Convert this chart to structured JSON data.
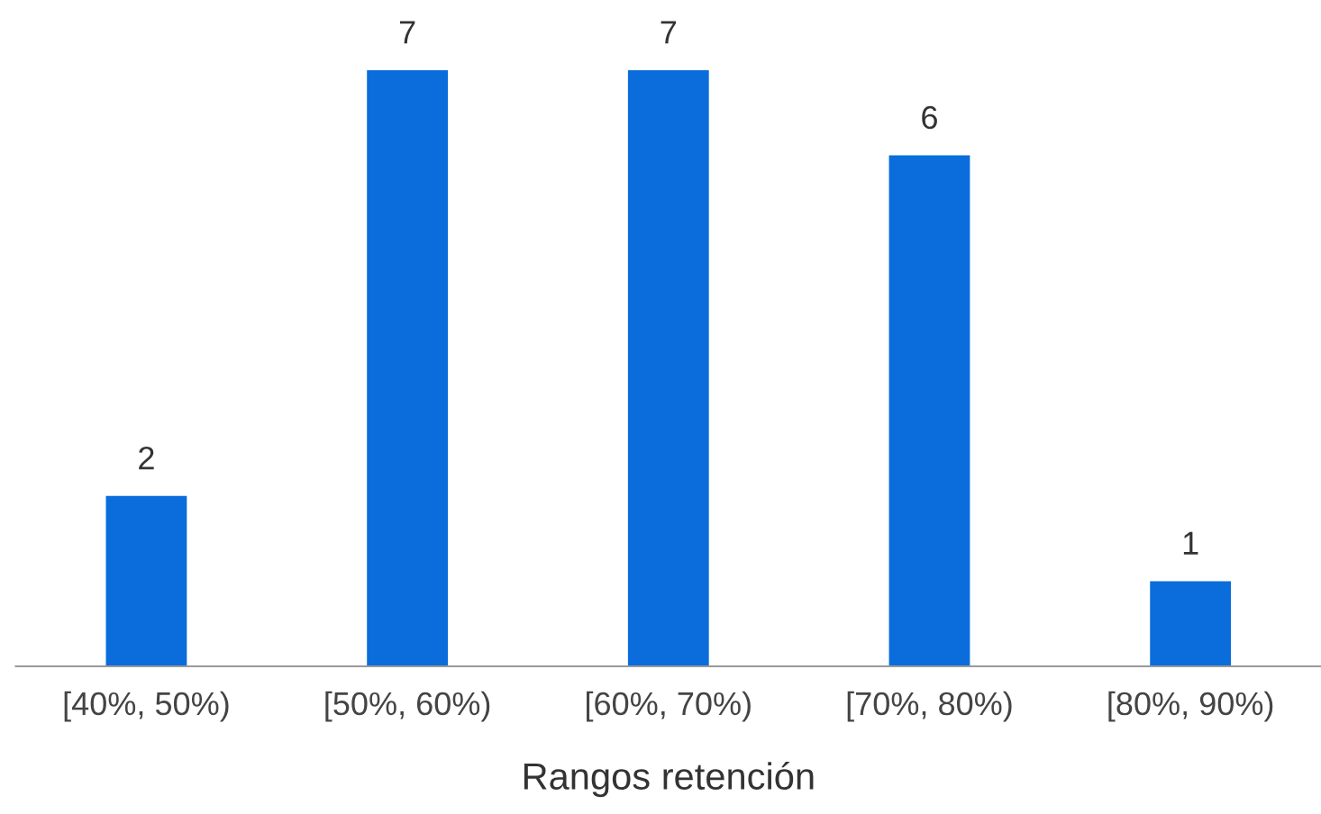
{
  "chart_data": {
    "type": "bar",
    "categories": [
      "[40%, 50%)",
      "[50%, 60%)",
      "[60%, 70%)",
      "[70%, 80%)",
      "[80%, 90%)"
    ],
    "values": [
      2,
      7,
      7,
      6,
      1
    ],
    "color": "#0a6ddb",
    "xlabel": "Rangos retención",
    "data_labels": true,
    "grid": false,
    "legend": false
  }
}
